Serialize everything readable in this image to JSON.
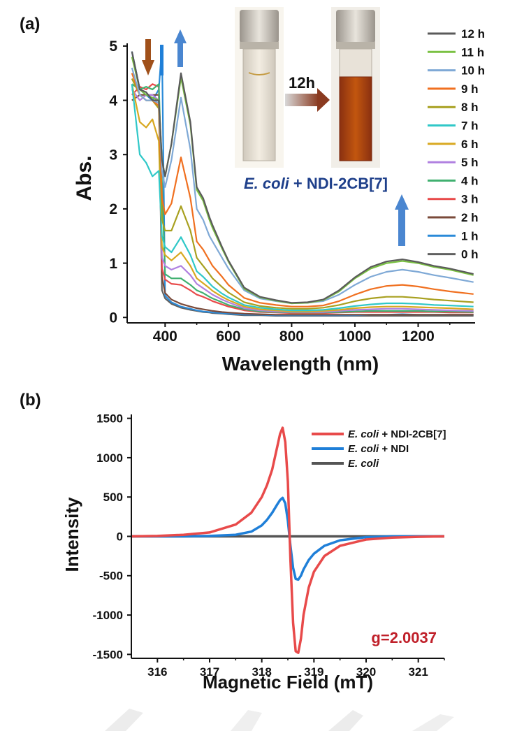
{
  "figure": {
    "panel_a_label": "(a)",
    "panel_b_label": "(b)"
  },
  "inset": {
    "arrow_label": "12h",
    "caption_italic": "E. coli",
    "caption_rest": " + NDI-2CB[7]"
  },
  "chart_data": [
    {
      "type": "line",
      "panel": "(a)",
      "title": "",
      "xlabel": "Wavelength (nm)",
      "ylabel": "Abs.",
      "xlim": [
        280,
        1380
      ],
      "ylim": [
        -0.1,
        5.05
      ],
      "xticks": [
        400,
        600,
        800,
        1000,
        1200
      ],
      "yticks": [
        0,
        1,
        2,
        3,
        4,
        5
      ],
      "grid": false,
      "legend_position": "right",
      "legend": [
        "12 h",
        "11 h",
        "10 h",
        "9 h",
        "8 h",
        "7 h",
        "6 h",
        "5 h",
        "4 h",
        "3 h",
        "2 h",
        "1 h",
        "0 h"
      ],
      "x": [
        295,
        320,
        340,
        360,
        380,
        390,
        400,
        420,
        450,
        480,
        500,
        520,
        540,
        550,
        580,
        600,
        650,
        700,
        750,
        800,
        850,
        900,
        950,
        1000,
        1050,
        1100,
        1150,
        1200,
        1250,
        1300,
        1375
      ],
      "series": [
        {
          "name": "12 h",
          "color": "#5a5a5a",
          "values": [
            4.9,
            4.2,
            4.15,
            4.0,
            4.0,
            2.9,
            2.6,
            3.2,
            4.5,
            3.6,
            2.4,
            2.2,
            1.85,
            1.7,
            1.3,
            1.05,
            0.55,
            0.38,
            0.32,
            0.27,
            0.28,
            0.33,
            0.5,
            0.74,
            0.93,
            1.03,
            1.07,
            1.02,
            0.95,
            0.9,
            0.8
          ]
        },
        {
          "name": "11 h",
          "color": "#7ac143",
          "values": [
            4.8,
            4.2,
            4.1,
            4.05,
            4.0,
            2.9,
            2.6,
            3.2,
            4.42,
            3.55,
            2.35,
            2.15,
            1.8,
            1.65,
            1.27,
            1.03,
            0.53,
            0.37,
            0.31,
            0.26,
            0.27,
            0.32,
            0.48,
            0.72,
            0.9,
            1.0,
            1.04,
            1.0,
            0.93,
            0.88,
            0.78
          ]
        },
        {
          "name": "10 h",
          "color": "#7fa9d6",
          "values": [
            4.6,
            4.1,
            4.0,
            4.0,
            3.95,
            2.7,
            2.4,
            2.9,
            4.05,
            3.1,
            2.0,
            1.8,
            1.5,
            1.4,
            1.1,
            0.9,
            0.5,
            0.35,
            0.3,
            0.26,
            0.27,
            0.3,
            0.42,
            0.6,
            0.75,
            0.84,
            0.88,
            0.84,
            0.78,
            0.73,
            0.65
          ]
        },
        {
          "name": "9 h",
          "color": "#f07020",
          "values": [
            4.5,
            4.1,
            4.0,
            4.0,
            3.9,
            2.2,
            1.9,
            2.1,
            2.95,
            2.2,
            1.4,
            1.25,
            1.05,
            0.95,
            0.75,
            0.6,
            0.36,
            0.27,
            0.23,
            0.2,
            0.2,
            0.22,
            0.3,
            0.42,
            0.52,
            0.58,
            0.6,
            0.57,
            0.52,
            0.48,
            0.43
          ]
        },
        {
          "name": "8 h",
          "color": "#a8a020",
          "values": [
            4.4,
            4.1,
            4.0,
            4.0,
            3.85,
            1.8,
            1.6,
            1.6,
            2.05,
            1.6,
            1.1,
            0.95,
            0.8,
            0.72,
            0.56,
            0.46,
            0.28,
            0.21,
            0.18,
            0.16,
            0.16,
            0.18,
            0.23,
            0.3,
            0.35,
            0.38,
            0.38,
            0.36,
            0.33,
            0.31,
            0.28
          ]
        },
        {
          "name": "7 h",
          "color": "#30c8c8",
          "values": [
            4.3,
            3.0,
            2.85,
            2.6,
            2.7,
            1.5,
            1.3,
            1.2,
            1.48,
            1.15,
            0.85,
            0.75,
            0.63,
            0.57,
            0.44,
            0.37,
            0.23,
            0.18,
            0.15,
            0.13,
            0.13,
            0.14,
            0.17,
            0.21,
            0.24,
            0.26,
            0.26,
            0.25,
            0.23,
            0.22,
            0.2
          ]
        },
        {
          "name": "6 h",
          "color": "#d8a820",
          "values": [
            4.3,
            3.6,
            3.5,
            3.65,
            3.25,
            1.3,
            1.15,
            1.05,
            1.2,
            0.95,
            0.72,
            0.63,
            0.54,
            0.49,
            0.38,
            0.32,
            0.2,
            0.15,
            0.13,
            0.11,
            0.11,
            0.12,
            0.14,
            0.17,
            0.19,
            0.2,
            0.2,
            0.19,
            0.18,
            0.17,
            0.15
          ]
        },
        {
          "name": "5 h",
          "color": "#b080e0",
          "values": [
            4.2,
            4.0,
            4.1,
            4.1,
            4.0,
            1.1,
            0.95,
            0.88,
            0.95,
            0.78,
            0.62,
            0.54,
            0.46,
            0.42,
            0.33,
            0.28,
            0.17,
            0.13,
            0.11,
            0.1,
            0.1,
            0.1,
            0.12,
            0.14,
            0.15,
            0.16,
            0.16,
            0.15,
            0.14,
            0.13,
            0.12
          ]
        },
        {
          "name": "4 h",
          "color": "#40b070",
          "values": [
            4.3,
            4.2,
            4.25,
            4.2,
            4.3,
            2.5,
            0.8,
            0.72,
            0.72,
            0.6,
            0.5,
            0.45,
            0.38,
            0.35,
            0.28,
            0.23,
            0.15,
            0.11,
            0.1,
            0.09,
            0.09,
            0.09,
            0.1,
            0.11,
            0.12,
            0.12,
            0.12,
            0.12,
            0.11,
            0.11,
            0.1
          ]
        },
        {
          "name": "3 h",
          "color": "#e84a4a",
          "values": [
            4.1,
            4.25,
            4.2,
            4.3,
            4.25,
            0.9,
            0.7,
            0.62,
            0.6,
            0.5,
            0.42,
            0.38,
            0.33,
            0.3,
            0.24,
            0.2,
            0.13,
            0.1,
            0.09,
            0.08,
            0.08,
            0.08,
            0.09,
            0.1,
            0.1,
            0.1,
            0.1,
            0.1,
            0.1,
            0.09,
            0.09
          ]
        },
        {
          "name": "2 h",
          "color": "#7a4a3a",
          "values": [
            4.0,
            4.1,
            4.1,
            4.1,
            4.1,
            0.75,
            0.45,
            0.33,
            0.25,
            0.2,
            0.17,
            0.15,
            0.13,
            0.12,
            0.1,
            0.09,
            0.07,
            0.06,
            0.05,
            0.05,
            0.05,
            0.05,
            0.05,
            0.05,
            0.05,
            0.05,
            0.05,
            0.05,
            0.05,
            0.05,
            0.05
          ]
        },
        {
          "name": "1 h",
          "color": "#2a8ad8",
          "values": [
            4.9,
            4.2,
            4.1,
            4.0,
            4.2,
            5.0,
            0.4,
            0.28,
            0.2,
            0.16,
            0.13,
            0.11,
            0.1,
            0.09,
            0.08,
            0.07,
            0.05,
            0.05,
            0.04,
            0.04,
            0.04,
            0.04,
            0.04,
            0.04,
            0.05,
            0.05,
            0.06,
            0.05,
            0.05,
            0.05,
            0.05
          ]
        },
        {
          "name": "0 h",
          "color": "#606060",
          "values": [
            4.9,
            4.2,
            4.1,
            4.0,
            4.0,
            0.5,
            0.35,
            0.25,
            0.18,
            0.14,
            0.12,
            0.1,
            0.09,
            0.08,
            0.07,
            0.06,
            0.04,
            0.04,
            0.03,
            0.03,
            0.03,
            0.03,
            0.03,
            0.03,
            0.03,
            0.03,
            0.03,
            0.03,
            0.03,
            0.03,
            0.03
          ]
        }
      ]
    },
    {
      "type": "line",
      "panel": "(b)",
      "title": "",
      "xlabel": "Magnetic Field (mT)",
      "ylabel": "Intensity",
      "xlim": [
        315.5,
        321.5
      ],
      "ylim": [
        -1550,
        1550
      ],
      "xticks": [
        316,
        317,
        318,
        319,
        320,
        321
      ],
      "yticks": [
        1500,
        1000,
        500,
        0,
        -500,
        -1000,
        -1500
      ],
      "grid": false,
      "legend_position": "top-right",
      "annotation": "g=2.0037",
      "annotation_color": "#c0202a",
      "x": [
        315.5,
        316.0,
        316.5,
        317.0,
        317.5,
        317.8,
        318.0,
        318.1,
        318.2,
        318.3,
        318.35,
        318.4,
        318.45,
        318.5,
        318.55,
        318.6,
        318.65,
        318.7,
        318.75,
        318.8,
        318.9,
        319.0,
        319.2,
        319.5,
        320.0,
        320.5,
        321.0,
        321.5
      ],
      "series": [
        {
          "name": "E. coli + NDI-2CB[7]",
          "color": "#e84a4a",
          "values": [
            0,
            5,
            20,
            50,
            150,
            300,
            500,
            650,
            850,
            1150,
            1300,
            1380,
            1200,
            700,
            -300,
            -1100,
            -1460,
            -1480,
            -1300,
            -1000,
            -650,
            -450,
            -250,
            -120,
            -40,
            -15,
            -5,
            0
          ]
        },
        {
          "name": "E. coli + NDI",
          "color": "#1f7fd8",
          "values": [
            0,
            0,
            0,
            5,
            20,
            60,
            140,
            210,
            300,
            410,
            460,
            490,
            420,
            200,
            -120,
            -400,
            -540,
            -550,
            -500,
            -420,
            -300,
            -220,
            -120,
            -50,
            -10,
            0,
            0,
            0
          ]
        },
        {
          "name": "E. coli",
          "color": "#555555",
          "values": [
            0,
            0,
            0,
            0,
            0,
            0,
            0,
            0,
            0,
            0,
            0,
            0,
            0,
            0,
            0,
            0,
            0,
            0,
            0,
            0,
            0,
            0,
            0,
            0,
            0,
            0,
            0,
            0
          ]
        }
      ]
    }
  ]
}
